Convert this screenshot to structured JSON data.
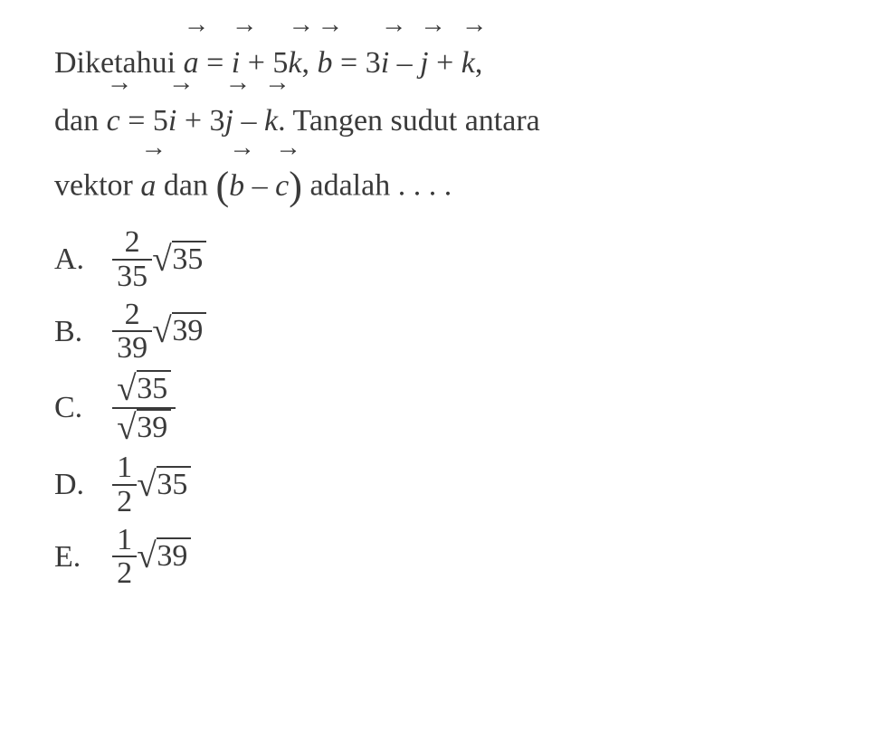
{
  "text_color": "#3a3a3a",
  "background_color": "#ffffff",
  "font_family": "Times New Roman",
  "font_size_pt": 26,
  "stem": {
    "word_diketahui": "Diketahui",
    "word_dan": "dan",
    "phrase_tangen": "Tangen sudut antara",
    "word_vektor": "vektor",
    "word_adalah": "adalah",
    "dots": ". . . .",
    "vectors": {
      "a": "a",
      "b": "b",
      "c": "c",
      "i": "i",
      "j": "j",
      "k": "k"
    },
    "a_def": {
      "i_coef": "",
      "k_coef": "5"
    },
    "b_def": {
      "i_coef": "3",
      "j_coef": "",
      "k_coef": ""
    },
    "c_def": {
      "i_coef": "5",
      "j_coef": "3",
      "k_coef": ""
    },
    "eq": "=",
    "plus": "+",
    "minus": "–",
    "comma": ",",
    "period": ".",
    "lparen": "(",
    "rparen": ")"
  },
  "options": {
    "A": {
      "label": "A.",
      "frac_num": "2",
      "frac_den": "35",
      "radicand": "35"
    },
    "B": {
      "label": "B.",
      "frac_num": "2",
      "frac_den": "39",
      "radicand": "39"
    },
    "C": {
      "label": "C.",
      "num_radicand": "35",
      "den_radicand": "39"
    },
    "D": {
      "label": "D.",
      "frac_num": "1",
      "frac_den": "2",
      "radicand": "35"
    },
    "E": {
      "label": "E.",
      "frac_num": "1",
      "frac_den": "2",
      "radicand": "39"
    }
  },
  "arrow_glyph": "→",
  "radical_glyph": "√"
}
